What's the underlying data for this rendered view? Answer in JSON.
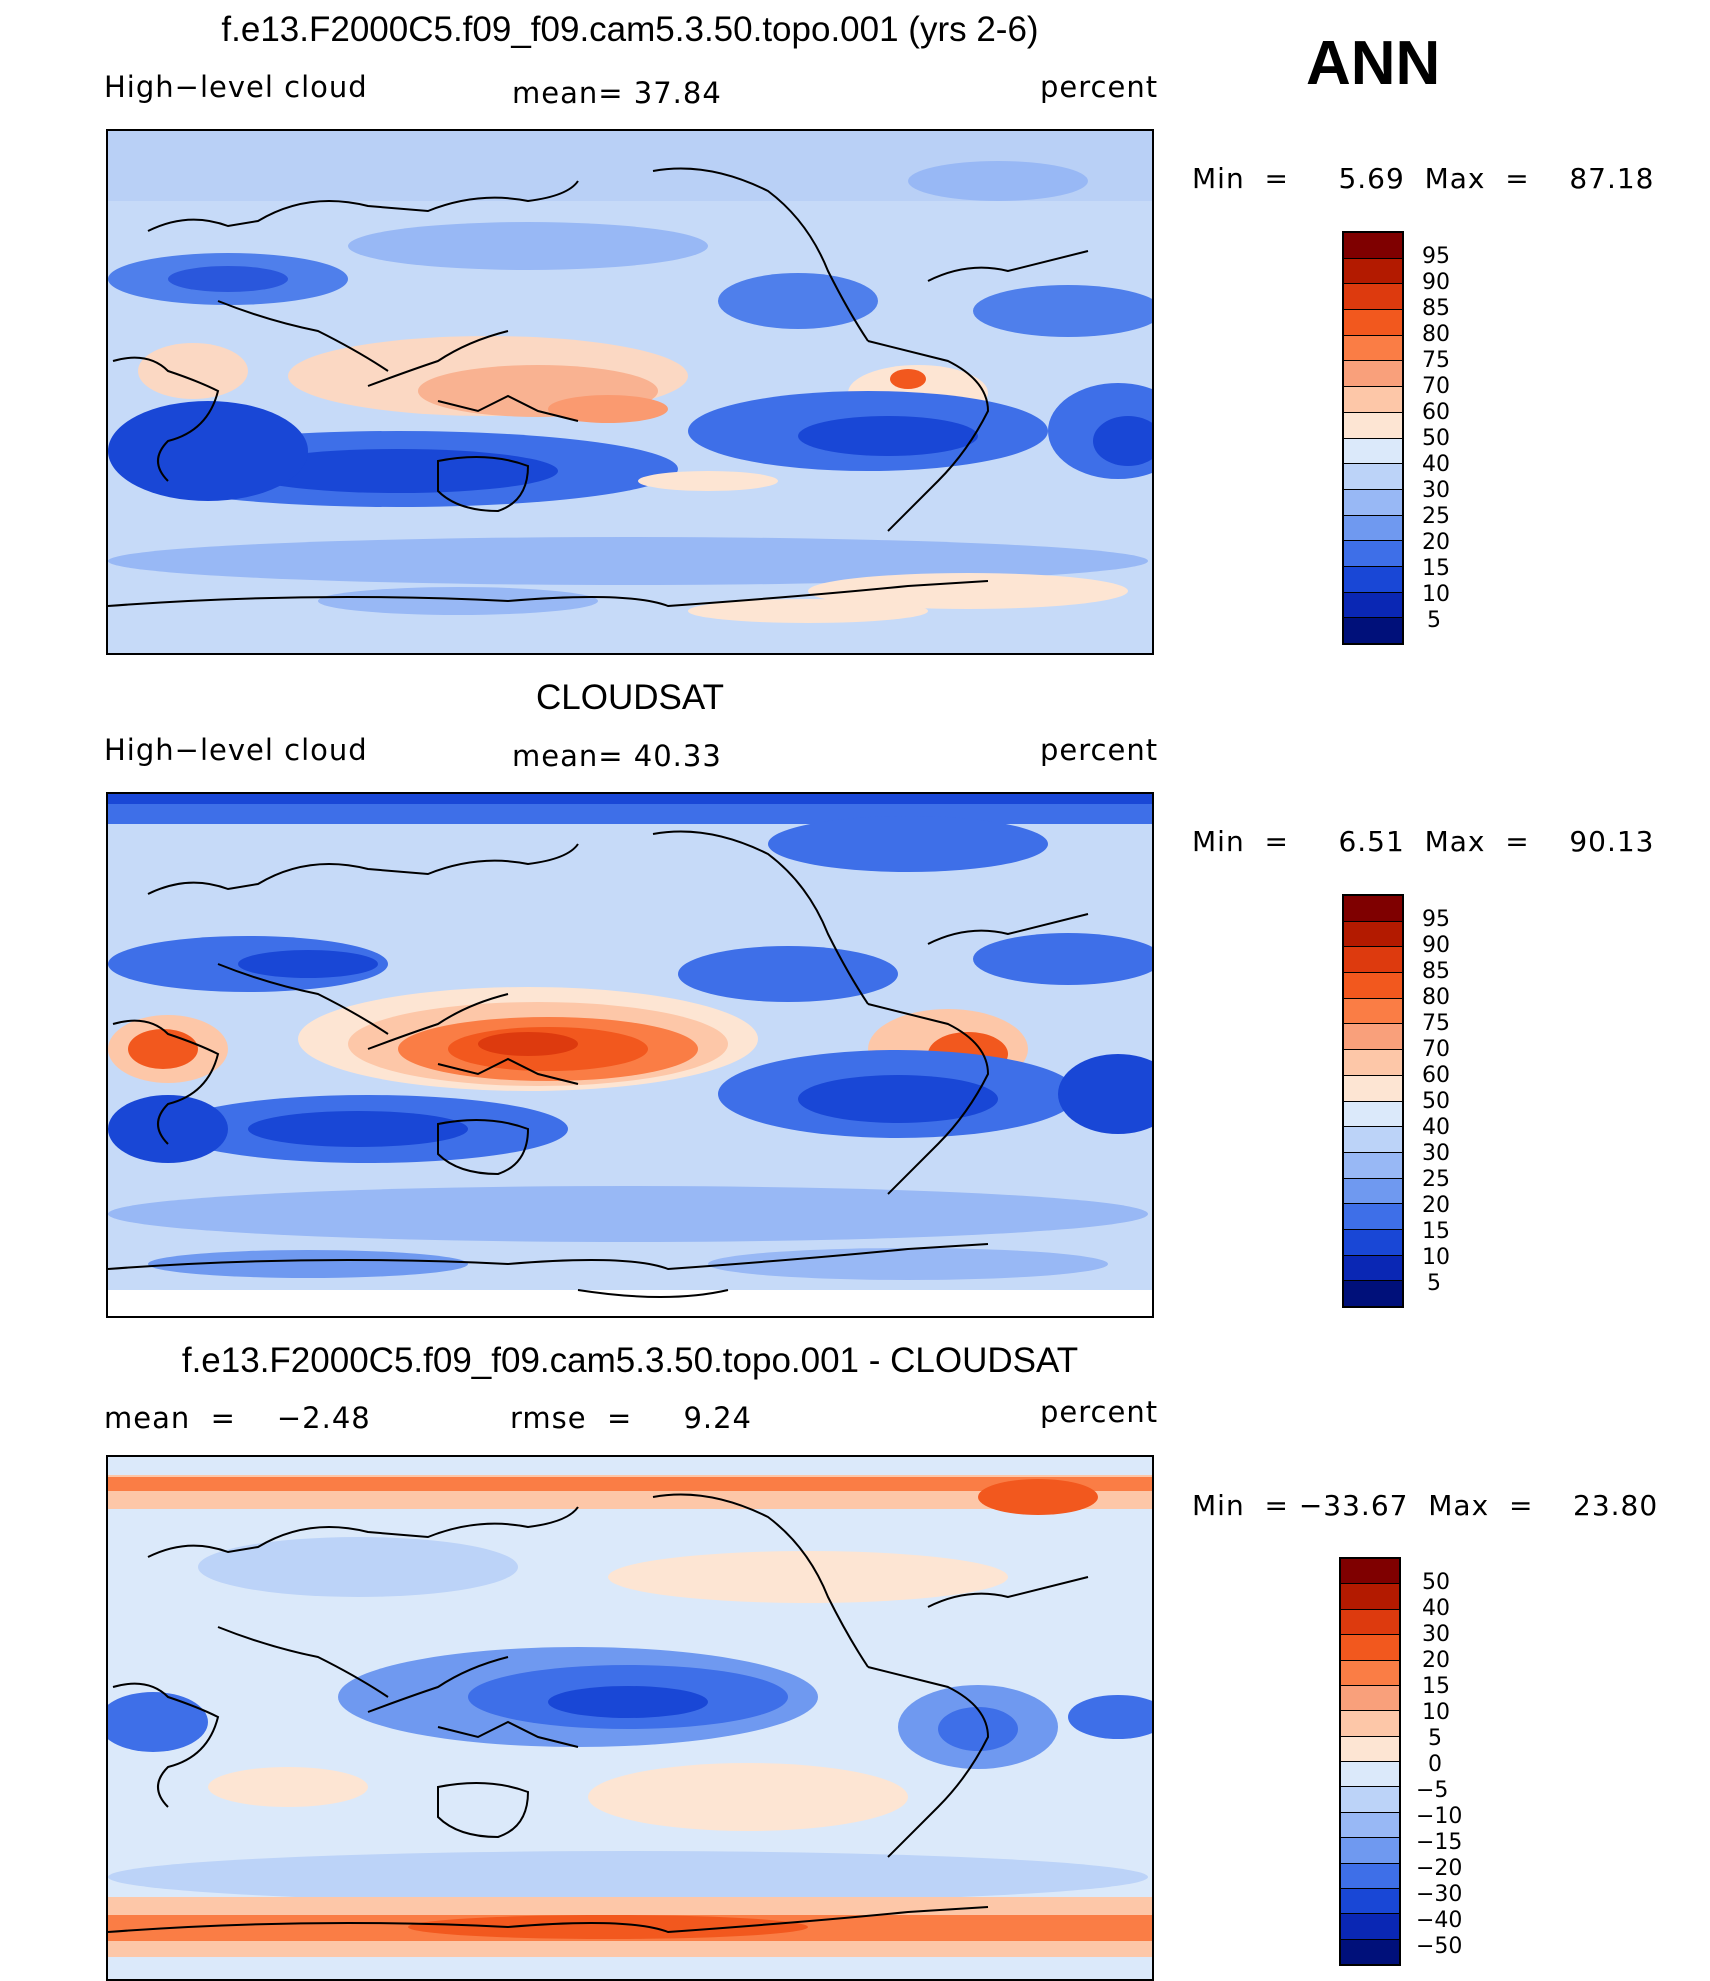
{
  "figure": {
    "season": "ANN",
    "panels": [
      {
        "title": "f.e13.F2000C5.f09_f09.cam5.3.50.topo.001 (yrs 2-6)",
        "left_label": "High−level cloud",
        "center_label": "mean=   37.84",
        "right_label": "percent",
        "minmax": "Min  =     5.69  Max  =    87.18",
        "colorbar_labels": [
          "95",
          "90",
          "85",
          "80",
          "75",
          "70",
          "60",
          "50",
          "40",
          "30",
          "25",
          "20",
          "15",
          "10",
          "5"
        ]
      },
      {
        "title": "CLOUDSAT",
        "left_label": "High−level cloud",
        "center_label": "mean=   40.33",
        "right_label": "percent",
        "minmax": "Min  =     6.51  Max  =    90.13",
        "colorbar_labels": [
          "95",
          "90",
          "85",
          "80",
          "75",
          "70",
          "60",
          "50",
          "40",
          "30",
          "25",
          "20",
          "15",
          "10",
          "5"
        ]
      },
      {
        "title": "f.e13.F2000C5.f09_f09.cam5.3.50.topo.001 - CLOUDSAT",
        "left_label": "mean  =    −2.48",
        "center_label": "rmse  =     9.24",
        "right_label": "percent",
        "minmax": "Min  = −33.67  Max  =    23.80",
        "colorbar_labels": [
          "50",
          "40",
          "30",
          "20",
          "15",
          "10",
          "5",
          "0",
          "−5",
          "−10",
          "−15",
          "−20",
          "−30",
          "−40",
          "−50"
        ]
      }
    ],
    "colorbar_colors": [
      "#7f0000",
      "#b31a00",
      "#dd3a0e",
      "#f2581e",
      "#fa7d45",
      "#f9a07b",
      "#fdc7a8",
      "#fde5d3",
      "#dbe9fa",
      "#bcd3f8",
      "#98b8f5",
      "#6f99f0",
      "#3e6fe8",
      "#1947d6",
      "#0a27b4",
      "#00107a"
    ]
  }
}
